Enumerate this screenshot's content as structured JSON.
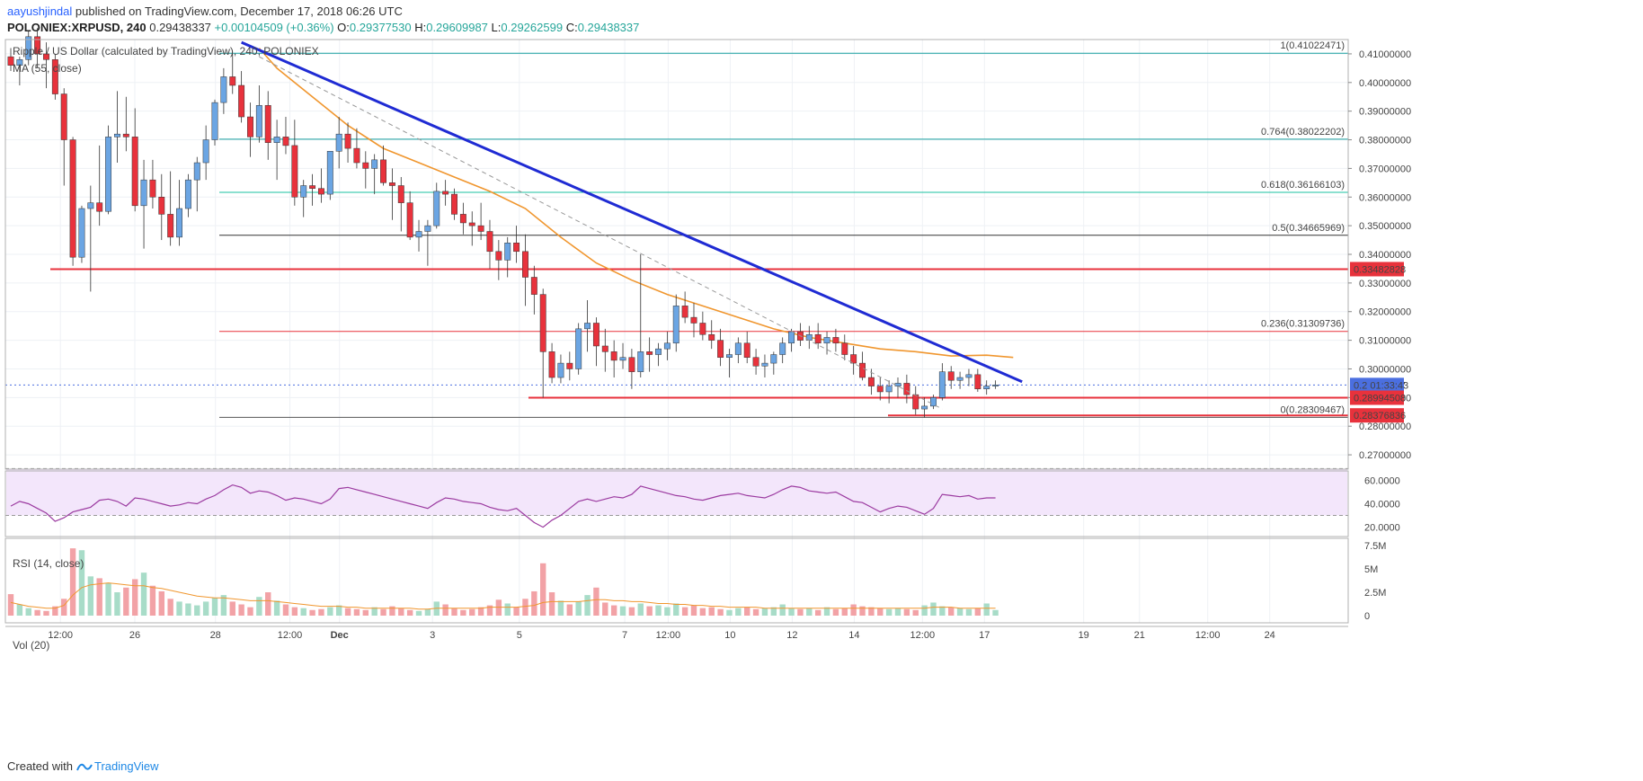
{
  "header": {
    "author": "aayushjindal",
    "published_text": " published on TradingView.com, December 17, 2018 06:26 UTC",
    "symbol": "POLONIEX:XRPUSD, 240",
    "last": "0.29438337",
    "change": "+0.00104509 (+0.36%)",
    "o_label": "O:",
    "o_value": "0.29377530",
    "h_label": "H:",
    "h_value": "0.29609987",
    "l_label": "L:",
    "l_value": "0.29262599",
    "c_label": "C:",
    "c_value": "0.29438337"
  },
  "legend": {
    "main": "Ripple / US Dollar (calculated by TradingView), 240, POLONIEX",
    "ma": "MA (55, close)"
  },
  "footer": {
    "created_with": "Created with",
    "brand": "TradingView"
  },
  "chart_data": [
    {
      "type": "candlestick",
      "title": "Ripple / US Dollar (calculated by TradingView), 240, POLONIEX",
      "ylim": [
        0.265,
        0.415
      ],
      "y_ticks": [
        "0.41000000",
        "0.40000000",
        "0.39000000",
        "0.38000000",
        "0.37000000",
        "0.36000000",
        "0.35000000",
        "0.34000000",
        "0.33000000",
        "0.32000000",
        "0.31000000",
        "0.30000000",
        "0.29000000",
        "0.28000000",
        "0.27000000"
      ],
      "x_tick_labels": [
        "12:00",
        "26",
        "28",
        "12:00",
        "Dec",
        "3",
        "5",
        "7",
        "12:00",
        "10",
        "12",
        "14",
        "12:00",
        "17",
        "19",
        "21",
        "12:00",
        "24"
      ],
      "colors": {
        "up": "#6ba5e3",
        "down": "#e8323c",
        "trendline": "#1f2bd3",
        "ma": "#f0962e",
        "fib_line": "#19a0a0",
        "horizontal": "#e8323c",
        "price_line": "#4b6fe0"
      },
      "candles_ohlc": [
        [
          0.409,
          0.412,
          0.404,
          0.406
        ],
        [
          0.406,
          0.409,
          0.399,
          0.408
        ],
        [
          0.408,
          0.418,
          0.406,
          0.416
        ],
        [
          0.416,
          0.419,
          0.405,
          0.41
        ],
        [
          0.41,
          0.414,
          0.398,
          0.408
        ],
        [
          0.408,
          0.41,
          0.394,
          0.396
        ],
        [
          0.396,
          0.398,
          0.364,
          0.38
        ],
        [
          0.38,
          0.381,
          0.336,
          0.339
        ],
        [
          0.339,
          0.357,
          0.337,
          0.356
        ],
        [
          0.356,
          0.364,
          0.327,
          0.358
        ],
        [
          0.358,
          0.378,
          0.35,
          0.355
        ],
        [
          0.355,
          0.385,
          0.354,
          0.381
        ],
        [
          0.381,
          0.397,
          0.372,
          0.382
        ],
        [
          0.382,
          0.395,
          0.376,
          0.381
        ],
        [
          0.381,
          0.391,
          0.355,
          0.357
        ],
        [
          0.357,
          0.373,
          0.342,
          0.366
        ],
        [
          0.366,
          0.373,
          0.356,
          0.36
        ],
        [
          0.36,
          0.368,
          0.345,
          0.354
        ],
        [
          0.354,
          0.369,
          0.343,
          0.346
        ],
        [
          0.346,
          0.366,
          0.343,
          0.356
        ],
        [
          0.356,
          0.368,
          0.353,
          0.366
        ],
        [
          0.366,
          0.374,
          0.355,
          0.372
        ],
        [
          0.372,
          0.385,
          0.366,
          0.38
        ],
        [
          0.38,
          0.394,
          0.378,
          0.393
        ],
        [
          0.393,
          0.405,
          0.389,
          0.402
        ],
        [
          0.402,
          0.41,
          0.396,
          0.399
        ],
        [
          0.399,
          0.404,
          0.386,
          0.388
        ],
        [
          0.388,
          0.393,
          0.374,
          0.381
        ],
        [
          0.381,
          0.399,
          0.379,
          0.392
        ],
        [
          0.392,
          0.397,
          0.373,
          0.379
        ],
        [
          0.379,
          0.387,
          0.366,
          0.381
        ],
        [
          0.381,
          0.388,
          0.375,
          0.378
        ],
        [
          0.378,
          0.387,
          0.357,
          0.36
        ],
        [
          0.36,
          0.366,
          0.353,
          0.364
        ],
        [
          0.364,
          0.368,
          0.357,
          0.363
        ],
        [
          0.363,
          0.37,
          0.358,
          0.361
        ],
        [
          0.361,
          0.374,
          0.359,
          0.376
        ],
        [
          0.376,
          0.388,
          0.37,
          0.382
        ],
        [
          0.382,
          0.386,
          0.372,
          0.377
        ],
        [
          0.377,
          0.384,
          0.37,
          0.372
        ],
        [
          0.372,
          0.376,
          0.363,
          0.37
        ],
        [
          0.37,
          0.375,
          0.361,
          0.373
        ],
        [
          0.373,
          0.378,
          0.364,
          0.365
        ],
        [
          0.365,
          0.37,
          0.352,
          0.364
        ],
        [
          0.364,
          0.367,
          0.348,
          0.358
        ],
        [
          0.358,
          0.362,
          0.345,
          0.346
        ],
        [
          0.346,
          0.352,
          0.341,
          0.348
        ],
        [
          0.348,
          0.352,
          0.336,
          0.35
        ],
        [
          0.35,
          0.365,
          0.349,
          0.362
        ],
        [
          0.362,
          0.366,
          0.357,
          0.361
        ],
        [
          0.361,
          0.363,
          0.352,
          0.354
        ],
        [
          0.354,
          0.358,
          0.347,
          0.351
        ],
        [
          0.351,
          0.355,
          0.343,
          0.35
        ],
        [
          0.35,
          0.358,
          0.345,
          0.348
        ],
        [
          0.348,
          0.352,
          0.335,
          0.341
        ],
        [
          0.341,
          0.345,
          0.331,
          0.338
        ],
        [
          0.338,
          0.346,
          0.332,
          0.344
        ],
        [
          0.344,
          0.35,
          0.337,
          0.341
        ],
        [
          0.341,
          0.347,
          0.322,
          0.332
        ],
        [
          0.332,
          0.336,
          0.319,
          0.326
        ],
        [
          0.326,
          0.328,
          0.29,
          0.306
        ],
        [
          0.306,
          0.309,
          0.295,
          0.297
        ],
        [
          0.297,
          0.305,
          0.295,
          0.302
        ],
        [
          0.302,
          0.306,
          0.296,
          0.3
        ],
        [
          0.3,
          0.316,
          0.298,
          0.314
        ],
        [
          0.314,
          0.324,
          0.306,
          0.316
        ],
        [
          0.316,
          0.318,
          0.301,
          0.308
        ],
        [
          0.308,
          0.314,
          0.299,
          0.306
        ],
        [
          0.306,
          0.31,
          0.297,
          0.303
        ],
        [
          0.303,
          0.309,
          0.3,
          0.304
        ],
        [
          0.304,
          0.307,
          0.293,
          0.299
        ],
        [
          0.299,
          0.34,
          0.297,
          0.306
        ],
        [
          0.306,
          0.311,
          0.299,
          0.305
        ],
        [
          0.305,
          0.309,
          0.301,
          0.307
        ],
        [
          0.307,
          0.313,
          0.303,
          0.309
        ],
        [
          0.309,
          0.326,
          0.306,
          0.322
        ],
        [
          0.322,
          0.327,
          0.316,
          0.318
        ],
        [
          0.318,
          0.323,
          0.311,
          0.316
        ],
        [
          0.316,
          0.32,
          0.31,
          0.312
        ],
        [
          0.312,
          0.317,
          0.307,
          0.31
        ],
        [
          0.31,
          0.314,
          0.301,
          0.304
        ],
        [
          0.304,
          0.307,
          0.297,
          0.305
        ],
        [
          0.305,
          0.311,
          0.302,
          0.309
        ],
        [
          0.309,
          0.313,
          0.302,
          0.304
        ],
        [
          0.304,
          0.307,
          0.298,
          0.301
        ],
        [
          0.301,
          0.305,
          0.297,
          0.302
        ],
        [
          0.302,
          0.306,
          0.298,
          0.305
        ],
        [
          0.305,
          0.311,
          0.302,
          0.309
        ],
        [
          0.309,
          0.314,
          0.306,
          0.313
        ],
        [
          0.313,
          0.316,
          0.308,
          0.31
        ],
        [
          0.31,
          0.315,
          0.307,
          0.312
        ],
        [
          0.312,
          0.316,
          0.307,
          0.309
        ],
        [
          0.309,
          0.313,
          0.305,
          0.311
        ],
        [
          0.311,
          0.314,
          0.306,
          0.309
        ],
        [
          0.309,
          0.312,
          0.303,
          0.305
        ],
        [
          0.305,
          0.308,
          0.298,
          0.302
        ],
        [
          0.302,
          0.306,
          0.296,
          0.297
        ],
        [
          0.297,
          0.3,
          0.291,
          0.294
        ],
        [
          0.294,
          0.297,
          0.289,
          0.292
        ],
        [
          0.292,
          0.296,
          0.288,
          0.294
        ],
        [
          0.294,
          0.297,
          0.29,
          0.295
        ],
        [
          0.295,
          0.298,
          0.288,
          0.291
        ],
        [
          0.291,
          0.294,
          0.284,
          0.286
        ],
        [
          0.286,
          0.29,
          0.283,
          0.287
        ],
        [
          0.287,
          0.291,
          0.286,
          0.29
        ],
        [
          0.29,
          0.302,
          0.289,
          0.299
        ],
        [
          0.299,
          0.301,
          0.293,
          0.296
        ],
        [
          0.296,
          0.299,
          0.293,
          0.297
        ],
        [
          0.297,
          0.3,
          0.294,
          0.298
        ],
        [
          0.298,
          0.3,
          0.292,
          0.293
        ],
        [
          0.293,
          0.296,
          0.291,
          0.294
        ],
        [
          0.294,
          0.296,
          0.293,
          0.2944
        ]
      ],
      "moving_average_55": [
        [
          28,
          0.412
        ],
        [
          30,
          0.405
        ],
        [
          34,
          0.395
        ],
        [
          38,
          0.385
        ],
        [
          42,
          0.377
        ],
        [
          46,
          0.372
        ],
        [
          50,
          0.367
        ],
        [
          54,
          0.362
        ],
        [
          58,
          0.356
        ],
        [
          62,
          0.346
        ],
        [
          66,
          0.337
        ],
        [
          70,
          0.331
        ],
        [
          74,
          0.326
        ],
        [
          78,
          0.322
        ],
        [
          82,
          0.318
        ],
        [
          86,
          0.314
        ],
        [
          90,
          0.311
        ],
        [
          94,
          0.309
        ],
        [
          98,
          0.307
        ],
        [
          102,
          0.306
        ],
        [
          106,
          0.3045
        ],
        [
          110,
          0.3048
        ],
        [
          113,
          0.304
        ]
      ],
      "trendlines": {
        "main_resistance": [
          [
            26,
            0.414
          ],
          [
            114,
            0.2955
          ]
        ],
        "dashed_channel": [
          [
            28,
            0.409
          ],
          [
            105,
            0.286
          ]
        ]
      },
      "horizontal_levels": [
        0.33482828,
        0.28994508
      ],
      "horizontal_level_labels": [
        "0.33482828",
        "0.28994508"
      ],
      "support_segment": [
        0.28376836
      ],
      "support_label": "0.28376836",
      "price_line": 0.29438337,
      "price_label": "0.29438337",
      "countdown_label": "01:33:43",
      "countdown_prefix": "0.2",
      "fibonacci": [
        {
          "label": "1(0.41022471)",
          "value": 0.41022471,
          "color": "#19a0a0"
        },
        {
          "label": "0.764(0.38022202)",
          "value": 0.38022202,
          "color": "#19a0a0"
        },
        {
          "label": "0.618(0.36166103)",
          "value": 0.36166103,
          "color": "#19c0a0"
        },
        {
          "label": "0.5(0.34665969)",
          "value": 0.34665969,
          "color": "#333333"
        },
        {
          "label": "0.236(0.31309736)",
          "value": 0.31309736,
          "color": "#e8323c"
        },
        {
          "label": "0(0.28309467)",
          "value": 0.28309467,
          "color": "#555555"
        }
      ]
    },
    {
      "type": "line",
      "title": "RSI (14, close)",
      "ylim": [
        12,
        68
      ],
      "y_ticks": [
        "60.0000",
        "40.0000",
        "20.0000"
      ],
      "bands": [
        30,
        70
      ],
      "color": "#9b3aa0",
      "band_fill": "#f3e6fb",
      "values": [
        38,
        42,
        40,
        36,
        32,
        25,
        28,
        33,
        35,
        37,
        43,
        44,
        42,
        38,
        45,
        44,
        42,
        40,
        38,
        39,
        41,
        40,
        44,
        47,
        52,
        56,
        54,
        49,
        51,
        50,
        47,
        43,
        45,
        44,
        42,
        40,
        44,
        53,
        54,
        52,
        50,
        48,
        46,
        44,
        42,
        40,
        38,
        36,
        41,
        45,
        44,
        42,
        41,
        40,
        37,
        35,
        34,
        36,
        30,
        24,
        20,
        26,
        30,
        36,
        42,
        44,
        42,
        44,
        46,
        45,
        48,
        55,
        53,
        51,
        49,
        47,
        46,
        44,
        43,
        45,
        47,
        48,
        49,
        47,
        46,
        45,
        48,
        52,
        55,
        54,
        51,
        50,
        49,
        50,
        46,
        42,
        41,
        37,
        33,
        36,
        38,
        37,
        34,
        31,
        36,
        48,
        47,
        46,
        47,
        44,
        45,
        45
      ]
    },
    {
      "type": "bar",
      "title": "Vol (20)",
      "ylim": [
        0,
        7.5
      ],
      "y_ticks": [
        "7.5M",
        "5M",
        "2.5M",
        "0"
      ],
      "unit": "M",
      "ma_color": "#f0962e",
      "values": [
        2.3,
        1.2,
        0.8,
        0.6,
        0.5,
        1.0,
        1.8,
        7.2,
        7.0,
        4.2,
        4.0,
        3.5,
        2.5,
        3.0,
        3.9,
        4.6,
        3.2,
        2.6,
        1.8,
        1.5,
        1.3,
        1.1,
        1.5,
        1.9,
        2.2,
        1.5,
        1.2,
        0.9,
        2.0,
        2.5,
        1.6,
        1.2,
        0.9,
        0.8,
        0.6,
        0.7,
        0.9,
        1.1,
        0.8,
        0.7,
        0.6,
        0.9,
        0.7,
        1.0,
        0.8,
        0.6,
        0.5,
        0.7,
        1.5,
        1.2,
        0.8,
        0.6,
        0.7,
        0.9,
        1.1,
        1.7,
        1.3,
        0.9,
        1.8,
        2.6,
        5.6,
        2.5,
        1.6,
        1.2,
        1.5,
        2.2,
        3.0,
        1.4,
        1.1,
        1.0,
        0.9,
        1.3,
        1.0,
        1.1,
        0.9,
        1.3,
        0.9,
        1.1,
        0.8,
        0.9,
        0.7,
        0.6,
        0.8,
        0.9,
        0.7,
        0.8,
        0.9,
        1.2,
        0.8,
        0.7,
        0.8,
        0.6,
        0.9,
        0.7,
        0.8,
        1.2,
        1.0,
        0.9,
        0.8,
        0.7,
        0.8,
        0.7,
        0.6,
        1.1,
        1.4,
        1.0,
        0.9,
        0.8,
        0.7,
        0.8,
        1.3,
        0.6
      ],
      "ma_values": [
        1.4,
        1.2,
        1.0,
        0.9,
        0.8,
        0.8,
        1.1,
        2.2,
        3.0,
        3.3,
        3.4,
        3.5,
        3.4,
        3.3,
        3.2,
        3.2,
        3.0,
        2.9,
        2.7,
        2.5,
        2.3,
        2.1,
        2.0,
        1.9,
        1.9,
        1.8,
        1.7,
        1.6,
        1.6,
        1.6,
        1.5,
        1.4,
        1.3,
        1.2,
        1.1,
        1.0,
        1.0,
        1.0,
        0.9,
        0.9,
        0.8,
        0.8,
        0.8,
        0.8,
        0.8,
        0.8,
        0.7,
        0.7,
        0.8,
        0.8,
        0.8,
        0.8,
        0.8,
        0.8,
        0.9,
        0.9,
        0.9,
        0.9,
        1.0,
        1.1,
        1.4,
        1.5,
        1.5,
        1.5,
        1.5,
        1.6,
        1.7,
        1.7,
        1.6,
        1.6,
        1.5,
        1.5,
        1.4,
        1.3,
        1.3,
        1.2,
        1.2,
        1.1,
        1.1,
        1.0,
        1.0,
        0.9,
        0.9,
        0.9,
        0.9,
        0.8,
        0.8,
        0.8,
        0.8,
        0.8,
        0.8,
        0.8,
        0.8,
        0.8,
        0.8,
        0.8,
        0.8,
        0.8,
        0.8,
        0.8,
        0.8,
        0.8,
        0.8,
        0.8,
        0.9,
        0.9,
        0.9,
        0.8,
        0.8,
        0.8,
        0.8,
        0.8
      ]
    }
  ]
}
